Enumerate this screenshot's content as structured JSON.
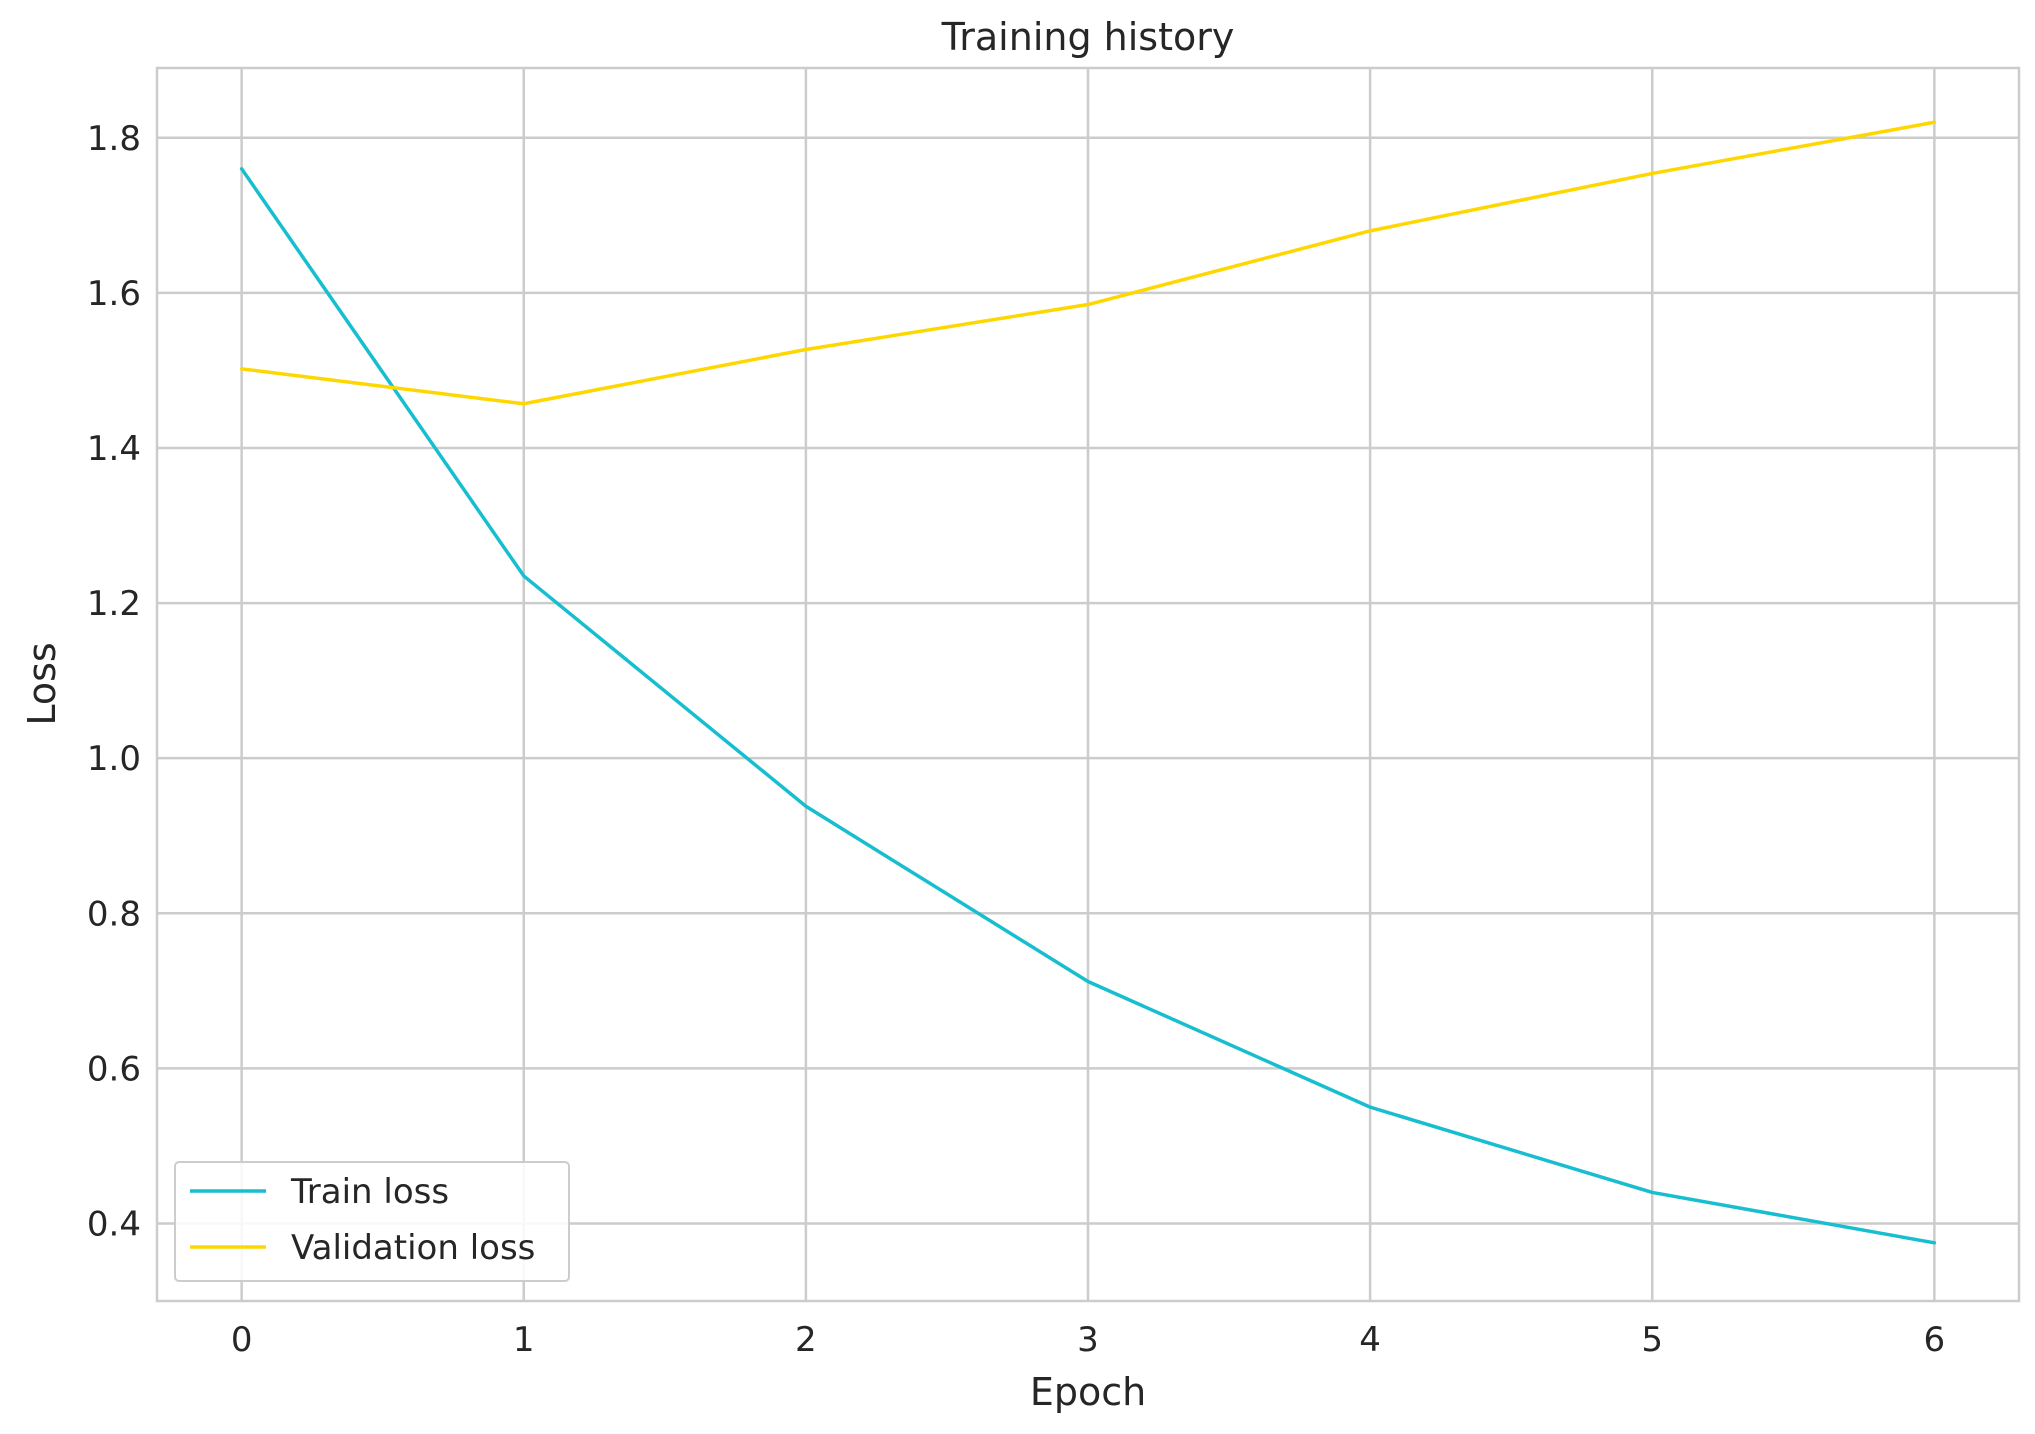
{
  "chart_data": {
    "type": "line",
    "title": "Training history",
    "xlabel": "Epoch",
    "ylabel": "Loss",
    "x": [
      0,
      1,
      2,
      3,
      4,
      5,
      6
    ],
    "xlim": [
      -0.3,
      6.3
    ],
    "ylim": [
      0.3,
      1.89
    ],
    "xticks": [
      "0",
      "1",
      "2",
      "3",
      "4",
      "5",
      "6"
    ],
    "yticks": [
      "0.4",
      "0.6",
      "0.8",
      "1.0",
      "1.2",
      "1.4",
      "1.6",
      "1.8"
    ],
    "grid": true,
    "legend_position": "lower-left",
    "series": [
      {
        "name": "Train loss",
        "color": "#17becf",
        "values": [
          1.76,
          1.235,
          0.938,
          0.712,
          0.55,
          0.44,
          0.375
        ]
      },
      {
        "name": "Validation loss",
        "color": "#ffd700",
        "values": [
          1.502,
          1.457,
          1.527,
          1.585,
          1.68,
          1.754,
          1.82
        ]
      }
    ]
  }
}
